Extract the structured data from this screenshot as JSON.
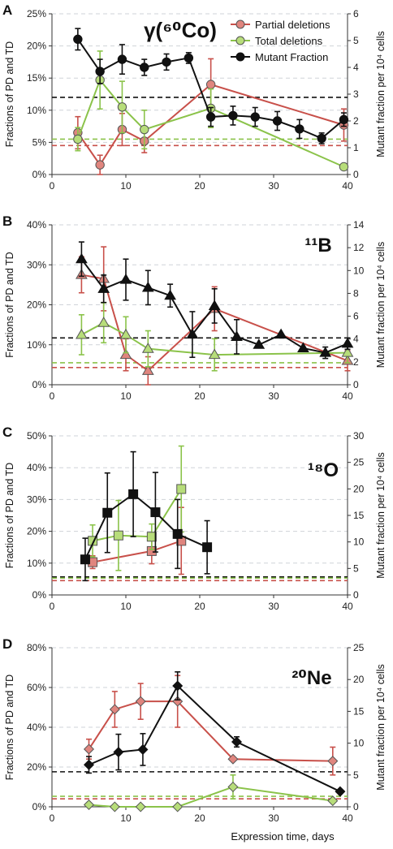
{
  "figure": {
    "xlabel": "Expression time, days",
    "left_ylabel": "Fractions of PD and TD",
    "right_ylabel": "Mutant fraction per 10⁴ cells"
  },
  "legend": {
    "entries": [
      {
        "label": "Partial deletions",
        "color": "#c8504a"
      },
      {
        "label": "Total deletions",
        "color": "#8bc34a"
      },
      {
        "label": "Mutant Fraction",
        "color": "#111111"
      }
    ]
  },
  "chart_data": [
    {
      "type": "line",
      "panel_letter": "A",
      "title": "γ(⁶⁰Co)",
      "marker": "circle",
      "xlim": [
        0,
        40
      ],
      "xticks": [
        0,
        10,
        20,
        30,
        40
      ],
      "left_ylim": [
        0,
        25
      ],
      "left_yticks": [
        0,
        5,
        10,
        15,
        20,
        25
      ],
      "left_unit": "%",
      "right_ylim": [
        0,
        6
      ],
      "right_yticks": [
        0,
        1,
        2,
        3,
        4,
        5,
        6
      ],
      "xlabel": "",
      "series": [
        {
          "name": "Partial deletions",
          "axis": "left",
          "color": "#c8504a",
          "x": [
            3.5,
            6.5,
            9.5,
            12.5,
            21.5,
            39.5
          ],
          "y": [
            6.5,
            1.5,
            7.0,
            5.2,
            14.0,
            7.7
          ],
          "err": [
            2.5,
            1.5,
            2.5,
            1.8,
            4.0,
            2.5
          ]
        },
        {
          "name": "Total deletions",
          "axis": "left",
          "color": "#8bc34a",
          "x": [
            3.5,
            6.5,
            9.5,
            12.5,
            21.5,
            39.5
          ],
          "y": [
            5.5,
            14.7,
            10.5,
            7.0,
            10.3,
            1.2
          ],
          "err": [
            1.8,
            4.5,
            4.0,
            3.0,
            3.0,
            0
          ]
        },
        {
          "name": "Mutant Fraction",
          "axis": "right",
          "color": "#111111",
          "x": [
            3.5,
            6.5,
            9.5,
            12.5,
            15.5,
            18.5,
            21.5,
            24.5,
            27.5,
            30.5,
            33.5,
            36.5,
            39.5
          ],
          "y": [
            5.05,
            3.85,
            4.3,
            4.0,
            4.2,
            4.35,
            2.15,
            2.2,
            2.15,
            2.0,
            1.7,
            1.35,
            2.05
          ],
          "err": [
            0.4,
            0.45,
            0.55,
            0.3,
            0.3,
            0.2,
            0.35,
            0.35,
            0.35,
            0.35,
            0.35,
            0.2,
            0.25
          ]
        }
      ],
      "hlines": [
        {
          "axis": "right",
          "value": 2.88,
          "color": "#111111"
        },
        {
          "axis": "left",
          "value": 5.5,
          "color": "#8bc34a"
        },
        {
          "axis": "left",
          "value": 4.5,
          "color": "#c8504a"
        }
      ]
    },
    {
      "type": "line",
      "panel_letter": "B",
      "title": "¹¹B",
      "marker": "triangle",
      "xlim": [
        0,
        40
      ],
      "xticks": [
        0,
        10,
        20,
        30,
        40
      ],
      "left_ylim": [
        0,
        40
      ],
      "left_yticks": [
        0,
        10,
        20,
        30,
        40
      ],
      "left_unit": "%",
      "right_ylim": [
        0,
        14
      ],
      "right_yticks": [
        0,
        2,
        4,
        6,
        8,
        10,
        12,
        14
      ],
      "xlabel": "",
      "series": [
        {
          "name": "Partial deletions",
          "axis": "left",
          "color": "#c8504a",
          "x": [
            4,
            7,
            10,
            13,
            22,
            40
          ],
          "y": [
            27.5,
            26.5,
            7.5,
            3.5,
            19.0,
            6.0
          ],
          "err": [
            4.5,
            8.0,
            4.0,
            3.5,
            5.5,
            2.5
          ]
        },
        {
          "name": "Total deletions",
          "axis": "left",
          "color": "#8bc34a",
          "x": [
            4,
            7,
            10,
            13,
            22,
            40
          ],
          "y": [
            12.5,
            15.5,
            12.5,
            9.0,
            7.5,
            8.0
          ],
          "err": [
            5.0,
            5.0,
            4.5,
            4.5,
            4.0,
            2.5
          ]
        },
        {
          "name": "Mutant Fraction",
          "axis": "right",
          "color": "#111111",
          "x": [
            4,
            7,
            10,
            13,
            16,
            19,
            22,
            25,
            28,
            31,
            34,
            37,
            40
          ],
          "y": [
            11.0,
            8.4,
            9.2,
            8.5,
            7.8,
            4.4,
            6.9,
            4.2,
            3.5,
            4.4,
            3.2,
            2.8,
            3.6
          ],
          "err": [
            1.5,
            1.2,
            1.8,
            1.5,
            1.0,
            2.0,
            1.5,
            1.5,
            0,
            0,
            0,
            0.5,
            0.5
          ]
        }
      ],
      "hlines": [
        {
          "axis": "right",
          "value": 4.1,
          "color": "#111111"
        },
        {
          "axis": "left",
          "value": 5.5,
          "color": "#8bc34a"
        },
        {
          "axis": "left",
          "value": 4.3,
          "color": "#c8504a"
        }
      ]
    },
    {
      "type": "line",
      "panel_letter": "C",
      "title": "¹⁸O",
      "marker": "square",
      "xlim": [
        0,
        40
      ],
      "xticks": [
        0,
        10,
        20,
        30,
        40
      ],
      "left_ylim": [
        0,
        50
      ],
      "left_yticks": [
        0,
        10,
        20,
        30,
        40,
        50
      ],
      "left_unit": "%",
      "right_ylim": [
        0,
        30
      ],
      "right_yticks": [
        0,
        5,
        10,
        15,
        20,
        25,
        30
      ],
      "xlabel": "",
      "series": [
        {
          "name": "Partial deletions",
          "axis": "left",
          "color": "#c8504a",
          "x": [
            5.5,
            13.5,
            17.5
          ],
          "y": [
            10.3,
            13.8,
            17.0
          ],
          "err": [
            2.0,
            4.0,
            10.5
          ]
        },
        {
          "name": "Total deletions",
          "axis": "left",
          "color": "#8bc34a",
          "x": [
            5.5,
            9,
            13.5,
            17.5
          ],
          "y": [
            17.0,
            18.7,
            18.3,
            33.3
          ],
          "err": [
            5.0,
            11.0,
            4.0,
            13.5
          ]
        },
        {
          "name": "Mutant Fraction",
          "axis": "right",
          "color": "#111111",
          "x": [
            4.5,
            7.5,
            11,
            14,
            17,
            21
          ],
          "y": [
            6.7,
            15.5,
            19.0,
            15.6,
            11.5,
            9.0
          ],
          "err": [
            4.0,
            7.5,
            8.0,
            7.5,
            6.5,
            5.0
          ]
        }
      ],
      "hlines": [
        {
          "axis": "right",
          "value": 3.4,
          "color": "#111111"
        },
        {
          "axis": "left",
          "value": 5.3,
          "color": "#8bc34a"
        },
        {
          "axis": "left",
          "value": 4.5,
          "color": "#c8504a"
        }
      ]
    },
    {
      "type": "line",
      "panel_letter": "D",
      "title": "²⁰Ne",
      "marker": "diamond",
      "xlim": [
        0,
        40
      ],
      "xticks": [
        0,
        10,
        20,
        30,
        40
      ],
      "left_ylim": [
        0,
        80
      ],
      "left_yticks": [
        0,
        20,
        40,
        60,
        80
      ],
      "left_unit": "%",
      "right_ylim": [
        0,
        25
      ],
      "right_yticks": [
        0,
        5,
        10,
        15,
        20,
        25
      ],
      "xlabel": "Expression time, days",
      "series": [
        {
          "name": "Partial deletions",
          "axis": "left",
          "color": "#c8504a",
          "x": [
            5,
            8.5,
            12,
            17,
            24.5,
            38
          ],
          "y": [
            29,
            49,
            53,
            53,
            24,
            23
          ],
          "err": [
            5,
            9,
            9,
            13,
            0,
            7
          ]
        },
        {
          "name": "Total deletions",
          "axis": "left",
          "color": "#8bc34a",
          "x": [
            5,
            8.5,
            12,
            17,
            24.5,
            38
          ],
          "y": [
            1,
            0,
            0,
            0,
            10,
            3
          ],
          "err": [
            0,
            0,
            0,
            0,
            6,
            0
          ]
        },
        {
          "name": "Mutant Fraction",
          "axis": "right",
          "color": "#111111",
          "x": [
            5,
            9,
            12.3,
            17,
            25,
            39
          ],
          "y": [
            6.6,
            8.6,
            9.0,
            19.0,
            10.2,
            2.4
          ],
          "err": [
            1.3,
            2.8,
            2.5,
            2.2,
            0.8,
            0
          ]
        }
      ],
      "hlines": [
        {
          "axis": "right",
          "value": 5.5,
          "color": "#111111"
        },
        {
          "axis": "left",
          "value": 5.3,
          "color": "#8bc34a"
        },
        {
          "axis": "left",
          "value": 4.0,
          "color": "#c8504a"
        }
      ]
    }
  ]
}
